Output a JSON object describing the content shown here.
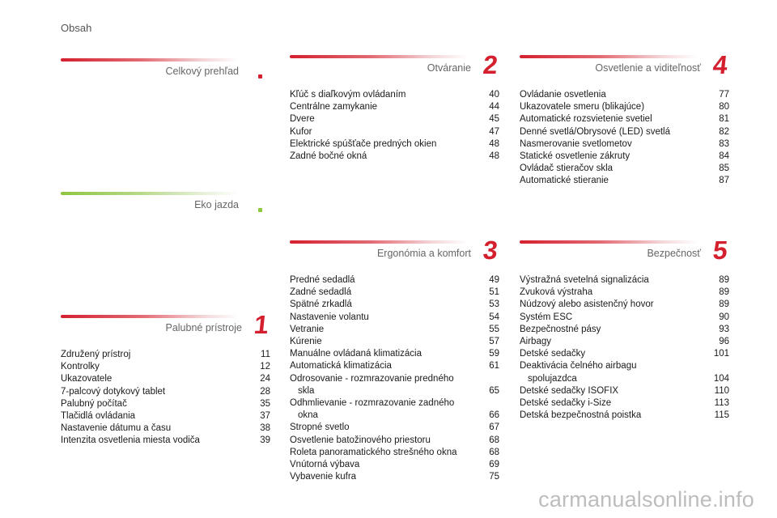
{
  "page_title": "Obsah",
  "sections": {
    "celkovy": {
      "title": "Celkový prehľad"
    },
    "eko": {
      "title": "Eko jazda"
    },
    "palubne": {
      "title": "Palubné prístroje",
      "number": "1",
      "items": [
        {
          "label": "Združený prístroj",
          "page": "11"
        },
        {
          "label": "Kontrolky",
          "page": "12"
        },
        {
          "label": "Ukazovatele",
          "page": "24"
        },
        {
          "label": "7-palcový dotykový tablet",
          "page": "28"
        },
        {
          "label": "Palubný počítač",
          "page": "35"
        },
        {
          "label": "Tlačidlá ovládania",
          "page": "37"
        },
        {
          "label": "Nastavenie dátumu a času",
          "page": "38"
        },
        {
          "label": "Intenzita osvetlenia miesta vodiča",
          "page": "39"
        }
      ]
    },
    "otvaranie": {
      "title": "Otváranie",
      "number": "2",
      "items": [
        {
          "label": "Kľúč s diaľkovým ovládaním",
          "page": "40"
        },
        {
          "label": "Centrálne zamykanie",
          "page": "44"
        },
        {
          "label": "Dvere",
          "page": "45"
        },
        {
          "label": "Kufor",
          "page": "47"
        },
        {
          "label": "Elektrické spúšťače predných okien",
          "page": "48"
        },
        {
          "label": "Zadné bočné okná",
          "page": "48"
        }
      ]
    },
    "ergonomia": {
      "title": "Ergonómia a komfort",
      "number": "3",
      "items": [
        {
          "label": "Predné sedadlá",
          "page": "49"
        },
        {
          "label": "Zadné sedadlá",
          "page": "51"
        },
        {
          "label": "Spätné zrkadlá",
          "page": "53"
        },
        {
          "label": "Nastavenie volantu",
          "page": "54"
        },
        {
          "label": "Vetranie",
          "page": "55"
        },
        {
          "label": "Kúrenie",
          "page": "57"
        },
        {
          "label": "Manuálne ovládaná klimatizácia",
          "page": "59"
        },
        {
          "label": "Automatická klimatizácia",
          "page": "61"
        },
        {
          "label": "Odrosovanie - rozmrazovanie predného",
          "cont": "skla",
          "page": "65"
        },
        {
          "label": "Odhmlievanie - rozmrazovanie zadného",
          "cont": "okna",
          "page": "66"
        },
        {
          "label": "Stropné svetlo",
          "page": "67"
        },
        {
          "label": "Osvetlenie batožinového priestoru",
          "page": "68"
        },
        {
          "label": "Roleta panoramatického strešného okna",
          "page": "68"
        },
        {
          "label": "Vnútorná výbava",
          "page": "69"
        },
        {
          "label": "Vybavenie kufra",
          "page": "75"
        }
      ]
    },
    "osvetlenie": {
      "title": "Osvetlenie a viditeľnosť",
      "number": "4",
      "items": [
        {
          "label": "Ovládanie osvetlenia",
          "page": "77"
        },
        {
          "label": "Ukazovatele smeru (blikajúce)",
          "page": "80"
        },
        {
          "label": "Automatické rozsvietenie svetiel",
          "page": "81"
        },
        {
          "label": "Denné svetlá/Obrysové (LED) svetlá",
          "page": "82"
        },
        {
          "label": "Nasmerovanie svetlometov",
          "page": "83"
        },
        {
          "label": "Statické osvetlenie zákruty",
          "page": "84"
        },
        {
          "label": "Ovládač stieračov skla",
          "page": "85"
        },
        {
          "label": "Automatické stieranie",
          "page": "87"
        }
      ]
    },
    "bezpecnost": {
      "title": "Bezpečnosť",
      "number": "5",
      "items": [
        {
          "label": "Výstražná svetelná signalizácia",
          "page": "89"
        },
        {
          "label": "Zvuková výstraha",
          "page": "89"
        },
        {
          "label": "Núdzový alebo asistenčný hovor",
          "page": "89"
        },
        {
          "label": "Systém ESC",
          "page": "90"
        },
        {
          "label": "Bezpečnostné pásy",
          "page": "93"
        },
        {
          "label": "Airbagy",
          "page": "96"
        },
        {
          "label": "Detské sedačky",
          "page": "101"
        },
        {
          "label": "Deaktivácia čelného airbagu",
          "cont": "spolujazdca",
          "page": "104"
        },
        {
          "label": "Detské sedačky ISOFIX",
          "page": "110"
        },
        {
          "label": "Detské sedačky i-Size",
          "page": "113"
        },
        {
          "label": "Detská bezpečnostná poistka",
          "page": "115"
        }
      ]
    }
  },
  "watermark": "carmanualsonline.info",
  "colors": {
    "accent_red": "#d4202e",
    "accent_green": "#8dc63f"
  }
}
